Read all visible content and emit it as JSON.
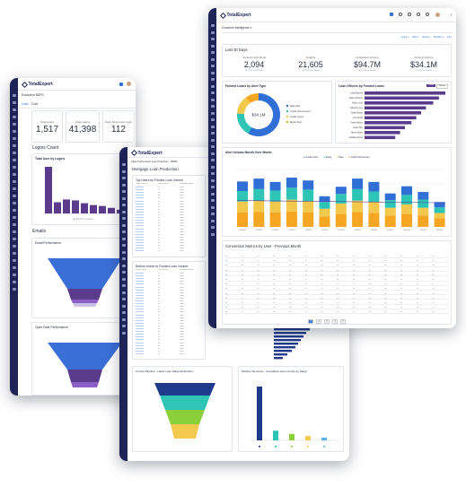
{
  "brand": {
    "name": "TotalExpert",
    "sidebar_color": "#1e2458",
    "accent": "#5b3c8c"
  },
  "window_left": {
    "dashboard_select": "Executive BDPC",
    "tabs": [
      "Loan",
      "Cont"
    ],
    "kpis": [
      {
        "label": "Total Users",
        "value": "1,517"
      },
      {
        "label": "Total Logins",
        "value": "41,398"
      },
      {
        "label": "Days Since Last Login",
        "value": "112"
      }
    ],
    "logins_title": "Logins Count",
    "logins_chart_title": "Total User by Logins",
    "logins_legend": "Number of Logins",
    "logins_chart": {
      "type": "bar",
      "values": [
        100,
        24,
        30,
        28,
        22,
        18,
        16,
        12,
        8
      ],
      "color": "#5b3c8c"
    },
    "emails_title": "Emails",
    "email_perf_title": "Email Performance",
    "open_perf_title": "Open Rate Performance"
  },
  "window_mid": {
    "dashboard_select": "Sales Performance Loan Production - BDMS",
    "section_title": "Mortgage Loan Production",
    "top_title": "Top Users by Funded Loan Volume",
    "bottom_title": "Bottom Users by Funded Loan Volume",
    "col_headers": [
      "Loan Officer",
      "Loan Count",
      "Funded Volume"
    ],
    "funnel_title": "Current Pipeline - Latest Loan Stage Distribution",
    "pipeline_title": "Pipeline Summary - Cumulative Loan Counts by Stage",
    "pipeline_chart": {
      "type": "bar",
      "values": [
        100,
        18,
        12,
        8,
        5
      ],
      "colors": [
        "#1e3a8a",
        "#2ec4b6",
        "#8bcf3b",
        "#f2c94c",
        "#5bb5e8"
      ]
    }
  },
  "window_right": {
    "dashboard_select": "Customer Intelligence",
    "filters": [
      "Ignite",
      "Plan",
      "Rows",
      "Monthly",
      "All"
    ],
    "last30_title": "Last 30 Days",
    "kpis": [
      {
        "label": "Contacts with Alerts",
        "value": "2,094",
        "sub": "▼ 1.5% Prev Month"
      },
      {
        "label": "Insights",
        "value": "21,605",
        "sub": "▲ 2.0% Prev Month"
      },
      {
        "label": "Application Volume",
        "value": "$94.7M",
        "sub": "▲ 12% Prev Month"
      },
      {
        "label": "Funded Volume",
        "value": "$34.1M",
        "sub": "▼ 3% Prev Month"
      }
    ],
    "donut_title": "Funded Loans by Alert Type",
    "donut_center": "$34.1M",
    "donut_legend": [
      "Rate Alert",
      "Credit Improvement",
      "Credit Inquiry",
      "Equity Alert"
    ],
    "donut_chart": {
      "type": "pie",
      "values": [
        58,
        18,
        14,
        10
      ],
      "colors": [
        "#2f6fd6",
        "#2ec4b6",
        "#f2c94c",
        "#f5a623"
      ]
    },
    "lo_title": "Loan Officers by Funded Loans",
    "lo_toggle": [
      "Count",
      "Volume"
    ],
    "lo_names": [
      "Linda Barrera",
      "Adam Johnson",
      "Brian Levin",
      "Catherine Lee",
      "David Brown",
      "Eva Smith",
      "Frank Wilson",
      "Grace Kim",
      "Henry Moore",
      "Isabella Garcia"
    ],
    "lo_chart": {
      "type": "bar",
      "values": [
        100,
        92,
        85,
        76,
        70,
        64,
        58,
        50,
        44,
        38
      ],
      "color": "#5b3c8c"
    },
    "alert_title": "Alert Volume Month Over Month",
    "alert_legend": [
      "Credit Inquiry",
      "Equity",
      "Rate",
      "Credit Improvement"
    ],
    "alert_chart": {
      "type": "bar",
      "categories": [
        "08/2023",
        "09/2023",
        "10/2023",
        "11/2023",
        "12/2023",
        "01/2024",
        "02/2024",
        "03/2024",
        "04/2024",
        "05/2024",
        "06/2024",
        "07/2024",
        "08/2024"
      ],
      "series": [
        {
          "name": "Credit Inquiry",
          "color": "#2f6fd6",
          "values": [
            20,
            22,
            18,
            21,
            19,
            12,
            15,
            22,
            20,
            14,
            18,
            16,
            11
          ]
        },
        {
          "name": "Equity",
          "color": "#2ec4b6",
          "values": [
            22,
            24,
            23,
            25,
            24,
            14,
            20,
            24,
            22,
            16,
            20,
            17,
            12
          ]
        },
        {
          "name": "Rate",
          "color": "#f2c94c",
          "values": [
            23,
            24,
            23,
            25,
            24,
            16,
            22,
            24,
            23,
            16,
            20,
            16,
            11
          ]
        },
        {
          "name": "Credit Improvement",
          "color": "#f5a623",
          "values": [
            30,
            31,
            30,
            32,
            30,
            22,
            27,
            31,
            29,
            24,
            27,
            24,
            18
          ]
        }
      ],
      "ylim": [
        0,
        120
      ]
    },
    "conv_title": "Conversion Metrics by User - Previous Month",
    "pagination": [
      "1",
      "2",
      "3",
      "4",
      "5"
    ]
  }
}
